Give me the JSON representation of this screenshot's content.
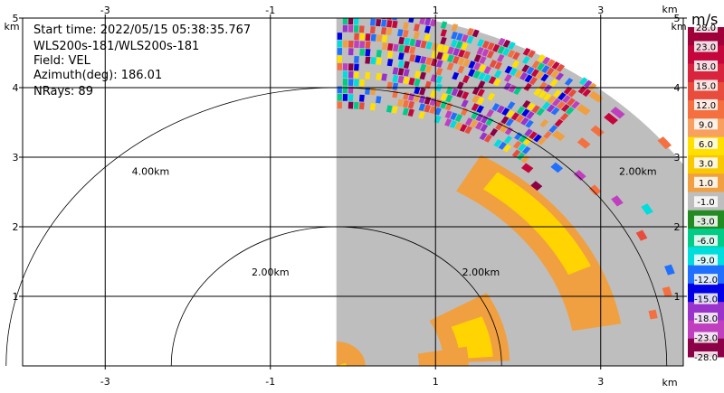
{
  "info": {
    "start_time": "Start time: 2022/05/15 05:38:35.767",
    "instrument": "WLS200s-181/WLS200s-181",
    "field": "Field: VEL",
    "azimuth": "Azimuth(deg): 186.01",
    "nrays": "NRays: 89"
  },
  "colorbar": {
    "title": "m/s",
    "ticks": [
      "28.0",
      "23.0",
      "18.0",
      "15.0",
      "12.0",
      "9.0",
      "6.0",
      "3.0",
      "1.0",
      "-1.0",
      "-3.0",
      "-6.0",
      "-9.0",
      "-12.0",
      "-15.0",
      "-18.0",
      "-23.0",
      "-28.0"
    ],
    "colors": [
      "#a0003a",
      "#c4063c",
      "#d8243c",
      "#e84c3c",
      "#f47040",
      "#f8a060",
      "#ffe000",
      "#f8c800",
      "#f0a040",
      "#bebebe",
      "#228b22",
      "#00cc88",
      "#00dddd",
      "#2070ff",
      "#0000e6",
      "#9933cc",
      "#bf3fbf",
      "#8b0046"
    ]
  },
  "chart_data": {
    "type": "heatmap",
    "projection": "RHI sector (range vs height)",
    "xlim": [
      -4.0,
      4.0
    ],
    "ylim": [
      0,
      5.0
    ],
    "x_ticks": [
      "-3",
      "-1",
      "1",
      "3"
    ],
    "y_ticks": [
      "1",
      "2",
      "3",
      "4",
      "5"
    ],
    "x_unit_label": "km",
    "y_unit_label": "km",
    "range_rings_km": [
      2.0,
      4.0
    ],
    "ring_labels": [
      "4.00km",
      "2.00km",
      "2.00km",
      "2.00km"
    ],
    "sector": {
      "x_start_km": -0.2,
      "max_range_km": 5.1,
      "elev_start_deg": 0,
      "elev_end_deg": 90
    },
    "field": "VEL",
    "units": "m/s",
    "bands": [
      {
        "r_min_km": 0.0,
        "r_max_km": 0.5,
        "value": 4.0
      },
      {
        "r_min_km": 0.5,
        "r_max_km": 1.3,
        "value": 0.0
      },
      {
        "r_min_km": 1.3,
        "r_max_km": 2.2,
        "value": 2.0
      },
      {
        "r_min_km": 2.2,
        "r_max_km": 2.9,
        "value": 0.0
      },
      {
        "r_min_km": 2.9,
        "r_max_km": 3.7,
        "value": 4.0
      },
      {
        "r_min_km": 3.7,
        "r_max_km": 5.1,
        "value": "noisy"
      }
    ]
  }
}
